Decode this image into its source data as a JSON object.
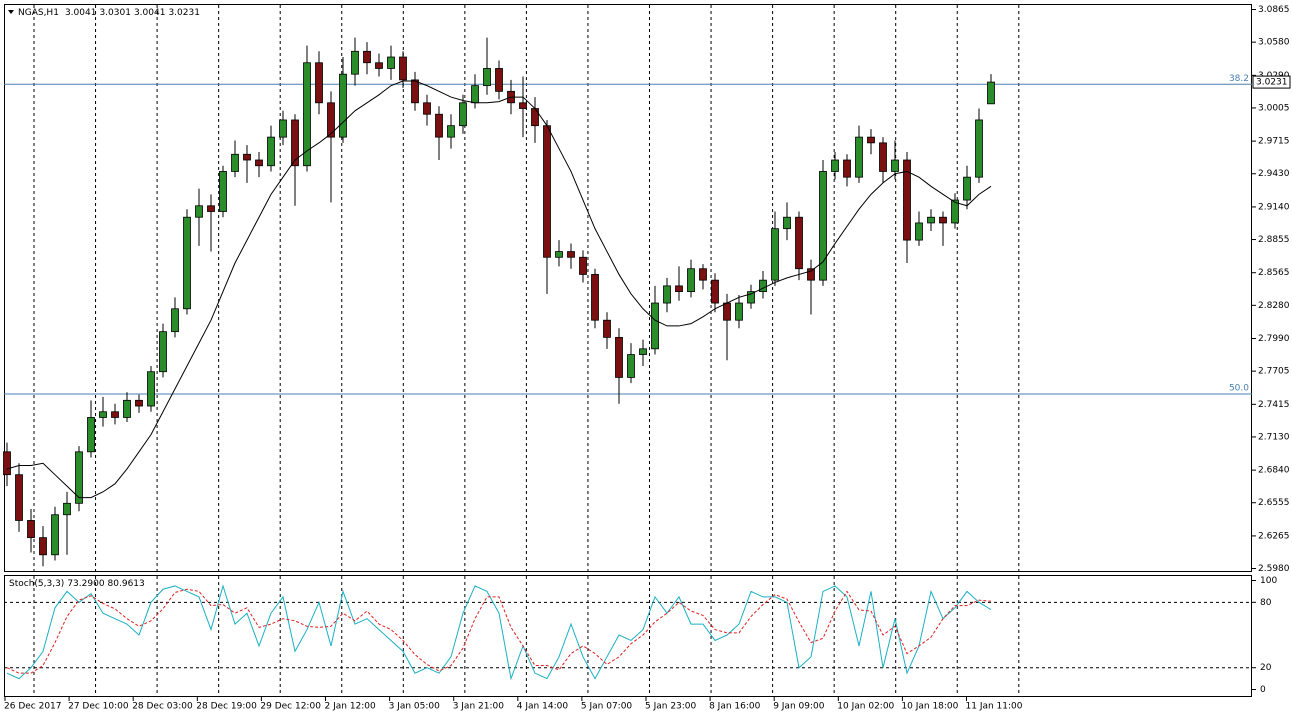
{
  "chart_data": [
    {
      "type": "candlestick",
      "title": "NGAS,H1",
      "up_color": "#2a8c2a",
      "down_color": "#7a1010",
      "ma_color": "#000000",
      "hline_color": "#4a7fb0",
      "ylim": [
        2.5954,
        3.0909
      ],
      "yticks": [
        3.0865,
        {
          "value": 3.058,
          "label": "3.0580"
        },
        {
          "value": 3.029,
          "label": "3.0290"
        },
        3.0005,
        2.9715,
        {
          "value": 2.943,
          "label": "2.9430"
        },
        {
          "value": 2.914,
          "label": "2.9140"
        },
        2.8855,
        2.8565,
        {
          "value": 2.828,
          "label": "2.8280"
        },
        {
          "value": 2.799,
          "label": "2.7990"
        },
        2.7705,
        2.7415,
        {
          "value": 2.713,
          "label": "2.7130"
        },
        {
          "value": 2.684,
          "label": "2.6840"
        },
        2.6555,
        2.6265,
        {
          "value": 2.598,
          "label": "2.5980"
        }
      ],
      "x_labels": [
        "26 Dec 2017",
        "27 Dec 10:00",
        "28 Dec 03:00",
        "28 Dec 19:00",
        "29 Dec 12:00",
        "2 Jan 12:00",
        "3 Jan 05:00",
        "3 Jan 21:00",
        "4 Jan 14:00",
        "5 Jan 07:00",
        "5 Jan 23:00",
        "8 Jan 16:00",
        "9 Jan 09:00",
        "10 Jan 02:00",
        "10 Jan 18:00",
        "11 Jan 11:00"
      ],
      "hlines": [
        {
          "level": 38.2,
          "price": 3.0212
        },
        {
          "level": {
            "value": 50,
            "label": "50.0"
          },
          "price": 2.7505
        }
      ],
      "open": [
        2.7,
        2.68,
        2.64,
        2.625,
        2.61,
        2.645,
        2.655,
        2.7,
        2.73,
        2.735,
        2.73,
        2.745,
        2.74,
        2.77,
        2.805,
        2.825,
        2.905,
        2.915,
        2.91,
        2.945,
        2.96,
        2.955,
        2.95,
        2.975,
        2.99,
        2.95,
        3.04,
        3.005,
        2.975,
        3.03,
        3.05,
        3.04,
        3.035,
        3.045,
        3.025,
        3.005,
        2.995,
        2.975,
        2.985,
        3.005,
        3.02,
        3.035,
        3.015,
        3.005,
        3.0,
        2.985,
        2.87,
        2.875,
        2.87,
        2.855,
        2.815,
        2.8,
        2.765,
        2.785,
        2.79,
        2.83,
        2.845,
        2.84,
        2.86,
        2.85,
        2.83,
        2.815,
        2.83,
        2.84,
        2.85,
        2.895,
        2.905,
        2.86,
        2.85,
        2.945,
        2.955,
        2.94,
        2.975,
        2.97,
        2.945,
        2.955,
        2.885,
        2.9,
        2.905,
        2.9,
        2.92,
        2.94,
        3.0041
      ],
      "high": [
        2.708,
        2.69,
        2.65,
        2.635,
        2.652,
        2.665,
        2.705,
        2.745,
        2.748,
        2.742,
        2.752,
        2.75,
        2.775,
        2.812,
        2.835,
        2.912,
        2.93,
        2.925,
        2.95,
        2.972,
        2.968,
        2.962,
        2.985,
        2.998,
        2.995,
        3.055,
        3.05,
        3.015,
        3.045,
        3.062,
        3.058,
        3.048,
        3.055,
        3.05,
        3.032,
        3.012,
        3.002,
        2.995,
        3.012,
        3.03,
        3.062,
        3.042,
        3.025,
        3.028,
        3.01,
        2.99,
        2.885,
        2.882,
        2.876,
        2.86,
        2.822,
        2.808,
        2.795,
        2.798,
        2.845,
        2.852,
        2.862,
        2.868,
        2.864,
        2.856,
        2.838,
        2.837,
        2.846,
        2.858,
        2.91,
        2.918,
        2.91,
        2.868,
        2.955,
        2.962,
        2.96,
        2.985,
        2.982,
        2.975,
        2.972,
        2.962,
        2.91,
        2.912,
        2.91,
        2.926,
        2.95,
        3.0,
        3.0301
      ],
      "low": [
        2.67,
        2.63,
        2.612,
        2.6,
        2.605,
        2.61,
        2.648,
        2.695,
        2.722,
        2.724,
        2.726,
        2.734,
        2.735,
        2.765,
        2.8,
        2.82,
        2.88,
        2.875,
        2.905,
        2.94,
        2.935,
        2.94,
        2.945,
        2.968,
        2.915,
        2.945,
        2.995,
        2.918,
        2.97,
        3.02,
        3.03,
        3.028,
        3.025,
        3.018,
        2.998,
        2.985,
        2.955,
        2.965,
        2.978,
        3.0,
        3.012,
        3.008,
        2.995,
        2.975,
        2.97,
        2.838,
        2.862,
        2.86,
        2.848,
        2.808,
        2.79,
        2.742,
        2.76,
        2.775,
        2.785,
        2.822,
        2.832,
        2.835,
        2.842,
        2.822,
        2.78,
        2.808,
        2.825,
        2.834,
        2.845,
        2.885,
        2.85,
        2.82,
        2.845,
        2.938,
        2.932,
        2.935,
        2.96,
        2.935,
        2.938,
        2.865,
        2.88,
        2.893,
        2.88,
        2.895,
        2.912,
        2.935,
        3.0041
      ],
      "close": [
        2.68,
        2.64,
        2.625,
        2.61,
        2.645,
        2.655,
        2.7,
        2.73,
        2.735,
        2.73,
        2.745,
        2.74,
        2.77,
        2.805,
        2.825,
        2.905,
        2.915,
        2.91,
        2.945,
        2.96,
        2.955,
        2.95,
        2.975,
        2.99,
        2.95,
        3.04,
        3.005,
        2.975,
        3.03,
        3.05,
        3.04,
        3.035,
        3.045,
        3.025,
        3.005,
        2.995,
        2.975,
        2.985,
        3.005,
        3.02,
        3.035,
        3.015,
        3.005,
        3.0,
        2.985,
        2.87,
        2.875,
        2.87,
        2.855,
        2.815,
        2.8,
        2.765,
        2.785,
        2.79,
        2.83,
        2.845,
        2.84,
        2.86,
        2.85,
        2.83,
        2.815,
        2.83,
        2.84,
        2.85,
        2.895,
        2.905,
        2.86,
        2.85,
        2.945,
        2.955,
        2.94,
        2.975,
        2.97,
        2.945,
        2.955,
        2.885,
        2.9,
        2.905,
        2.9,
        2.92,
        2.94,
        2.99,
        3.0231
      ],
      "ma_values": [
        2.685,
        2.688,
        2.688,
        2.69,
        2.68,
        2.67,
        2.66,
        2.66,
        2.665,
        2.672,
        2.685,
        2.7,
        2.715,
        2.735,
        2.755,
        2.775,
        2.795,
        2.815,
        2.84,
        2.865,
        2.885,
        2.905,
        2.925,
        2.94,
        2.955,
        2.963,
        2.97,
        2.978,
        2.988,
        2.998,
        3.005,
        3.012,
        3.02,
        3.024,
        3.024,
        3.02,
        3.015,
        3.01,
        3.007,
        3.005,
        3.005,
        3.006,
        3.01,
        3.01,
        3.0,
        2.985,
        2.965,
        2.945,
        2.92,
        2.895,
        2.875,
        2.855,
        2.838,
        2.825,
        2.815,
        2.81,
        2.81,
        2.812,
        2.818,
        2.825,
        2.83,
        2.835,
        2.838,
        2.843,
        2.848,
        2.852,
        2.855,
        2.858,
        2.866,
        2.882,
        2.897,
        2.912,
        2.925,
        2.935,
        2.943,
        2.945,
        2.94,
        2.932,
        2.925,
        2.918,
        2.915,
        2.925,
        2.932
      ]
    },
    {
      "type": "line",
      "title": "Stoch(5,3,3)",
      "legend_values": [
        {
          "value": 73.29,
          "label": "73.2900"
        },
        80.9613
      ],
      "ylim": [
        -6.4,
        104.6
      ],
      "yticks": [
        0,
        20,
        80,
        100
      ],
      "levels": [
        20,
        80
      ],
      "series": [
        {
          "color": "#1ab0c4",
          "dashed": false,
          "values": [
            15,
            10,
            20,
            35,
            75,
            90,
            80,
            88,
            70,
            65,
            60,
            50,
            80,
            92,
            95,
            90,
            85,
            55,
            95,
            60,
            70,
            40,
            70,
            85,
            35,
            55,
            80,
            40,
            90,
            60,
            65,
            55,
            45,
            35,
            15,
            20,
            15,
            30,
            70,
            95,
            90,
            70,
            10,
            40,
            15,
            10,
            30,
            60,
            30,
            10,
            30,
            50,
            45,
            55,
            85,
            70,
            85,
            60,
            60,
            45,
            50,
            60,
            90,
            85,
            85,
            80,
            20,
            30,
            90,
            95,
            85,
            40,
            90,
            20,
            65,
            15,
            40,
            90,
            65,
            75,
            90,
            80,
            73.29
          ]
        },
        {
          "color": "#e02020",
          "dashed": true,
          "values": [
            20,
            15,
            15,
            22,
            43,
            67,
            82,
            86,
            79,
            74,
            65,
            58,
            63,
            74,
            89,
            92,
            90,
            77,
            78,
            70,
            75,
            57,
            60,
            65,
            63,
            58,
            57,
            58,
            70,
            63,
            72,
            60,
            55,
            45,
            32,
            23,
            17,
            22,
            38,
            65,
            85,
            85,
            57,
            40,
            22,
            22,
            18,
            33,
            40,
            33,
            23,
            30,
            42,
            50,
            62,
            70,
            80,
            72,
            68,
            55,
            52,
            52,
            67,
            78,
            87,
            83,
            62,
            43,
            47,
            72,
            90,
            73,
            72,
            50,
            58,
            33,
            40,
            48,
            65,
            77,
            77,
            82,
            80.9613
          ]
        }
      ]
    }
  ]
}
